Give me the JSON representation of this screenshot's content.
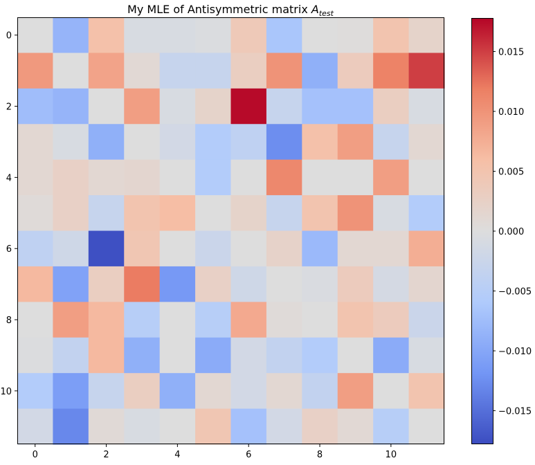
{
  "chart_data": {
    "type": "heatmap",
    "title": "My MLE of Antisymmetric matrix ",
    "title_math": {
      "symbol": "A",
      "subscript": "test"
    },
    "xlabel": "",
    "ylabel": "",
    "x_ticks": [
      0,
      2,
      4,
      6,
      8,
      10
    ],
    "y_ticks": [
      0,
      2,
      4,
      6,
      8,
      10
    ],
    "xlim": [
      -0.5,
      11.5
    ],
    "ylim": [
      11.5,
      -0.5
    ],
    "grid": false,
    "colormap": "coolwarm",
    "color_stops": [
      "#3b4cc0",
      "#7396f5",
      "#b0cbfc",
      "#dddddd",
      "#f6bfa6",
      "#ec7f63",
      "#b40426"
    ],
    "vmin": -0.0178,
    "vmax": 0.0178,
    "colorbar": {
      "placement": "right",
      "ticks": [
        -0.015,
        -0.01,
        -0.005,
        0.0,
        0.005,
        0.01,
        0.015
      ],
      "tick_labels": [
        "−0.015",
        "−0.010",
        "−0.005",
        "0.000",
        "0.005",
        "0.010",
        "0.015"
      ]
    },
    "matrix": [
      [
        0.0,
        -0.0085,
        0.0055,
        -0.0008,
        -0.0008,
        -0.0004,
        0.004,
        -0.0065,
        0.0,
        0.0002,
        0.005,
        0.002
      ],
      [
        0.0095,
        0.0,
        0.0085,
        0.001,
        -0.003,
        -0.003,
        0.003,
        0.01,
        -0.009,
        0.0035,
        0.0115,
        0.015
      ],
      [
        -0.0075,
        -0.0085,
        0.0,
        0.009,
        -0.0008,
        0.002,
        0.0175,
        -0.003,
        -0.007,
        -0.007,
        0.003,
        -0.0008
      ],
      [
        0.0012,
        -0.0008,
        -0.009,
        0.0,
        -0.0015,
        -0.0055,
        -0.004,
        -0.0125,
        0.0055,
        0.009,
        -0.003,
        0.0012
      ],
      [
        0.0012,
        0.0025,
        0.0012,
        0.0015,
        0.0,
        -0.0055,
        0.0,
        0.011,
        0.0,
        0.0,
        0.009,
        0.0
      ],
      [
        0.0005,
        0.0025,
        -0.003,
        0.005,
        0.006,
        0.0,
        0.002,
        -0.003,
        0.005,
        0.01,
        -0.0008,
        -0.0055
      ],
      [
        -0.004,
        -0.002,
        -0.0175,
        0.0045,
        0.0,
        -0.0025,
        0.0,
        0.0022,
        -0.008,
        0.0012,
        0.0012,
        0.0075
      ],
      [
        0.0065,
        -0.0105,
        0.003,
        0.012,
        -0.0115,
        0.0025,
        -0.002,
        0.0,
        -0.0005,
        0.0035,
        -0.0012,
        0.0015
      ],
      [
        0.0,
        0.009,
        0.0065,
        -0.005,
        0.0,
        -0.005,
        0.008,
        0.0005,
        0.0,
        0.005,
        0.0035,
        -0.0025
      ],
      [
        -0.0002,
        -0.0035,
        0.0065,
        -0.009,
        0.0,
        -0.0095,
        -0.0015,
        -0.0035,
        -0.0055,
        0.0,
        -0.0095,
        -0.0008
      ],
      [
        -0.0055,
        -0.011,
        -0.003,
        0.003,
        -0.009,
        0.0012,
        -0.0015,
        0.0012,
        -0.0035,
        0.009,
        0.0,
        0.005
      ],
      [
        -0.0015,
        -0.013,
        0.0008,
        -0.0008,
        0.0,
        0.0045,
        -0.007,
        -0.0015,
        0.0025,
        0.001,
        -0.005,
        0.0
      ]
    ]
  }
}
